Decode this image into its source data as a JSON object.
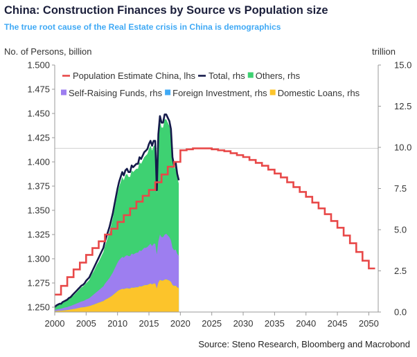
{
  "header": {
    "title": "China: Construction Finances by Source vs Population size",
    "subtitle": "The true root cause of the Real Estate crisis in China is demographics",
    "source": "Source: Steno Research, Bloomberg and Macrobond"
  },
  "colors": {
    "population": "#e84848",
    "total": "#141a4a",
    "others": "#3ed172",
    "self_raising": "#9d7ef0",
    "foreign": "#3fa9f5",
    "domestic": "#fcc42b",
    "reference_line": "#d0d0d0"
  },
  "chart_data": {
    "type": "area",
    "ylabel_left": "No. of Persons, billion",
    "ylabel_right": "trillion",
    "xlim": [
      2000,
      2051.5
    ],
    "ylim_left": [
      1.245,
      1.5
    ],
    "ylim_right": [
      0,
      15
    ],
    "x_ticks": [
      2000,
      2005,
      2010,
      2015,
      2020,
      2025,
      2030,
      2035,
      2040,
      2045,
      2050
    ],
    "y_ticks_left": [
      "1.250",
      "1.275",
      "1.300",
      "1.325",
      "1.350",
      "1.375",
      "1.400",
      "1.425",
      "1.450",
      "1.475",
      "1.500"
    ],
    "y_ticks_right": [
      "0.0",
      "2.5",
      "5.0",
      "7.5",
      "10.0",
      "12.5",
      "15.0"
    ],
    "grid": false,
    "legend_position": "top-left",
    "reference_line_left": 1.414,
    "legend": [
      {
        "key": "population",
        "label": "Population Estimate China, lhs",
        "marker": "line"
      },
      {
        "key": "total",
        "label": "Total, rhs",
        "marker": "line"
      },
      {
        "key": "others",
        "label": "Others, rhs",
        "marker": "square"
      },
      {
        "key": "self_raising",
        "label": "Self-Raising Funds, rhs",
        "marker": "square"
      },
      {
        "key": "foreign",
        "label": "Foreign Investment, rhs",
        "marker": "square"
      },
      {
        "key": "domestic",
        "label": "Domestic Loans, rhs",
        "marker": "square"
      }
    ],
    "population": {
      "axis": "left",
      "x": [
        2000,
        2001,
        2002,
        2003,
        2004,
        2005,
        2006,
        2007,
        2008,
        2009,
        2010,
        2011,
        2012,
        2013,
        2014,
        2015,
        2016,
        2017,
        2018,
        2019,
        2020,
        2021,
        2022,
        2023,
        2024,
        2025,
        2026,
        2027,
        2028,
        2029,
        2030,
        2031,
        2032,
        2033,
        2034,
        2035,
        2036,
        2037,
        2038,
        2039,
        2040,
        2041,
        2042,
        2043,
        2044,
        2045,
        2046,
        2047,
        2048,
        2049,
        2050,
        2051
      ],
      "values": [
        1.263,
        1.272,
        1.281,
        1.289,
        1.296,
        1.304,
        1.311,
        1.318,
        1.325,
        1.331,
        1.338,
        1.345,
        1.352,
        1.359,
        1.365,
        1.371,
        1.379,
        1.387,
        1.395,
        1.4,
        1.412,
        1.413,
        1.414,
        1.414,
        1.414,
        1.413,
        1.412,
        1.411,
        1.409,
        1.407,
        1.405,
        1.402,
        1.399,
        1.396,
        1.392,
        1.388,
        1.384,
        1.379,
        1.374,
        1.369,
        1.364,
        1.358,
        1.352,
        1.346,
        1.339,
        1.332,
        1.324,
        1.316,
        1.307,
        1.298,
        1.29,
        1.29
      ]
    },
    "quarterly_x_start": 2000.0,
    "quarterly_x_step": 0.25,
    "total": {
      "axis": "right",
      "values": [
        0.3,
        0.4,
        0.45,
        0.5,
        0.5,
        0.6,
        0.65,
        0.7,
        0.75,
        0.85,
        0.9,
        1.0,
        1.1,
        1.2,
        1.3,
        1.4,
        1.5,
        1.6,
        1.65,
        1.75,
        1.9,
        2.0,
        2.1,
        2.3,
        2.5,
        2.7,
        2.9,
        3.1,
        3.3,
        3.5,
        3.7,
        3.9,
        4.3,
        4.6,
        4.9,
        5.2,
        5.6,
        6.0,
        6.5,
        7.0,
        7.5,
        7.9,
        8.2,
        8.5,
        8.3,
        8.6,
        8.7,
        8.5,
        8.5,
        8.9,
        8.8,
        8.9,
        9.0,
        9.0,
        9.4,
        9.3,
        9.5,
        9.7,
        9.8,
        9.9,
        10.2,
        10.4,
        10.1,
        10.4,
        10.4,
        7.4,
        10.8,
        11.9,
        11.5,
        11.5,
        12.0,
        12.0,
        11.8,
        11.6,
        11.1,
        9.4,
        8.9,
        9.1,
        8.4,
        8.0
      ]
    },
    "others": {
      "axis": "right",
      "values": [
        0.25,
        0.35,
        0.4,
        0.45,
        0.45,
        0.55,
        0.6,
        0.65,
        0.7,
        0.8,
        0.85,
        0.95,
        1.0,
        1.1,
        1.2,
        1.3,
        1.4,
        1.5,
        1.55,
        1.65,
        1.75,
        1.85,
        1.95,
        2.15,
        2.35,
        2.5,
        2.7,
        2.9,
        3.05,
        3.25,
        3.45,
        3.65,
        4.0,
        4.3,
        4.6,
        4.9,
        5.3,
        5.7,
        6.2,
        6.7,
        7.2,
        7.6,
        7.9,
        8.2,
        8.0,
        8.3,
        8.4,
        8.2,
        8.2,
        8.6,
        8.5,
        8.6,
        8.7,
        8.7,
        9.1,
        9.0,
        9.2,
        9.4,
        9.5,
        9.6,
        9.9,
        10.1,
        9.8,
        10.1,
        10.1,
        7.2,
        10.5,
        11.6,
        11.2,
        11.2,
        11.7,
        11.7,
        11.5,
        11.3,
        10.8,
        9.2,
        8.7,
        8.9,
        8.2,
        7.8
      ]
    },
    "self_raising": {
      "axis": "right",
      "values": [
        0.12,
        0.15,
        0.17,
        0.19,
        0.2,
        0.23,
        0.26,
        0.28,
        0.3,
        0.34,
        0.36,
        0.4,
        0.44,
        0.48,
        0.52,
        0.56,
        0.6,
        0.64,
        0.66,
        0.7,
        0.76,
        0.8,
        0.84,
        0.92,
        1.0,
        1.08,
        1.16,
        1.24,
        1.32,
        1.4,
        1.48,
        1.56,
        1.72,
        1.84,
        1.96,
        2.08,
        2.24,
        2.4,
        2.6,
        2.8,
        3.0,
        3.15,
        3.25,
        3.35,
        3.3,
        3.4,
        3.45,
        3.4,
        3.4,
        3.55,
        3.5,
        3.55,
        3.6,
        3.6,
        3.75,
        3.7,
        3.8,
        3.9,
        3.9,
        3.95,
        4.05,
        4.15,
        4.0,
        4.15,
        4.15,
        3.5,
        4.3,
        4.7,
        4.55,
        4.55,
        4.7,
        4.75,
        4.65,
        4.55,
        4.35,
        3.9,
        3.75,
        3.8,
        3.55,
        3.4
      ]
    },
    "foreign": {
      "axis": "right",
      "values": [
        0.06,
        0.07,
        0.08,
        0.09,
        0.09,
        0.1,
        0.11,
        0.12,
        0.13,
        0.15,
        0.16,
        0.18,
        0.2,
        0.21,
        0.23,
        0.25,
        0.27,
        0.29,
        0.3,
        0.31,
        0.33,
        0.35,
        0.37,
        0.4,
        0.44,
        0.47,
        0.51,
        0.54,
        0.58,
        0.61,
        0.65,
        0.68,
        0.75,
        0.8,
        0.85,
        0.9,
        0.97,
        1.04,
        1.12,
        1.2,
        1.28,
        1.34,
        1.38,
        1.42,
        1.4,
        1.44,
        1.46,
        1.44,
        1.44,
        1.5,
        1.48,
        1.5,
        1.52,
        1.52,
        1.58,
        1.56,
        1.6,
        1.64,
        1.65,
        1.66,
        1.7,
        1.74,
        1.69,
        1.74,
        1.74,
        1.45,
        1.8,
        1.97,
        1.92,
        1.92,
        1.98,
        2.0,
        1.96,
        1.92,
        1.84,
        1.66,
        1.6,
        1.62,
        1.52,
        1.46
      ]
    },
    "domestic": {
      "axis": "right",
      "values": [
        0.05,
        0.06,
        0.07,
        0.08,
        0.08,
        0.09,
        0.1,
        0.11,
        0.12,
        0.14,
        0.15,
        0.17,
        0.19,
        0.2,
        0.22,
        0.24,
        0.26,
        0.28,
        0.29,
        0.3,
        0.32,
        0.34,
        0.36,
        0.39,
        0.43,
        0.46,
        0.5,
        0.53,
        0.57,
        0.6,
        0.64,
        0.67,
        0.74,
        0.79,
        0.84,
        0.89,
        0.96,
        1.03,
        1.11,
        1.19,
        1.27,
        1.33,
        1.37,
        1.41,
        1.39,
        1.43,
        1.45,
        1.43,
        1.43,
        1.49,
        1.47,
        1.49,
        1.51,
        1.51,
        1.57,
        1.55,
        1.59,
        1.63,
        1.64,
        1.65,
        1.69,
        1.73,
        1.68,
        1.73,
        1.73,
        1.44,
        1.79,
        1.96,
        1.91,
        1.91,
        1.97,
        1.99,
        1.95,
        1.91,
        1.83,
        1.65,
        1.59,
        1.61,
        1.51,
        1.45
      ]
    }
  }
}
